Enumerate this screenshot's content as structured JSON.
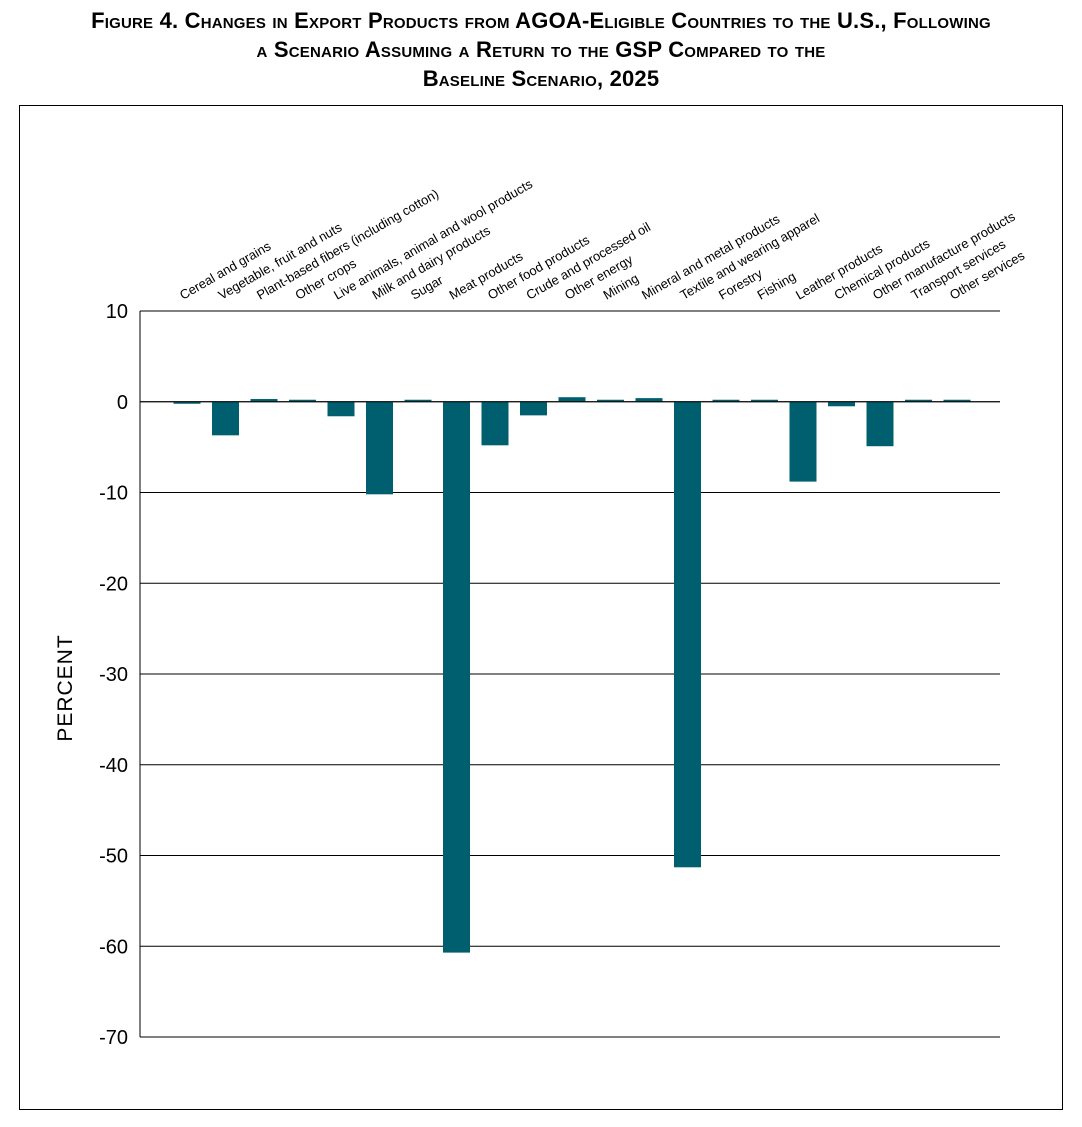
{
  "figure": {
    "title_line1": "Figure 4. Changes in Export Products from AGOA-Eligible Countries to the U.S., Following",
    "title_line2": "a Scenario Assuming a Return to the GSP Compared to the",
    "title_line3": "Baseline Scenario, 2025"
  },
  "colors": {
    "bar": "#005f6e",
    "grid": "#000000",
    "background": "#ffffff"
  },
  "chart_data": {
    "type": "bar",
    "title": "Figure 4. Changes in Export Products from AGOA-Eligible Countries to the U.S., Following a Scenario Assuming a Return to the GSP Compared to the Baseline Scenario, 2025",
    "xlabel": "",
    "ylabel": "PERCENT",
    "ylim": [
      -70,
      10
    ],
    "yticks": [
      10,
      0,
      -10,
      -20,
      -30,
      -40,
      -50,
      -60,
      -70
    ],
    "grid": true,
    "categories": [
      "Cereal and grains",
      "Vegetable, fruit and nuts",
      "Plant-based fibers (including cotton)",
      "Other crops",
      "Live animals, animal and wool products",
      "Milk and dairy products",
      "Sugar",
      "Meat products",
      "Other food products",
      "Crude and processed oil",
      "Other energy",
      "Mining",
      "Mineral and metal products",
      "Textile and wearing apparel",
      "Forestry",
      "Fishing",
      "Leather products",
      "Chemical products",
      "Other manufacture products",
      "Transport services",
      "Other services"
    ],
    "values": [
      -0.1,
      -3.7,
      0.3,
      0.2,
      -1.6,
      -10.2,
      0.2,
      -60.7,
      -4.8,
      -1.5,
      0.5,
      0.1,
      0.4,
      -51.3,
      0.1,
      0.1,
      -8.8,
      -0.5,
      -4.9,
      0.2,
      0.2
    ]
  }
}
